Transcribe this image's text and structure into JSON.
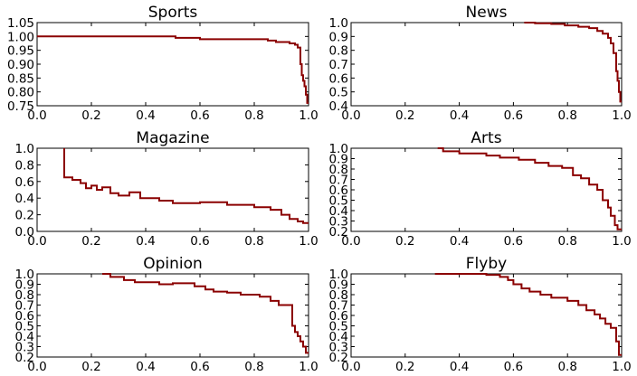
{
  "chart_data": [
    {
      "type": "line",
      "title": "Sports",
      "xlim": [
        0.0,
        1.0
      ],
      "ylim": [
        0.75,
        1.05
      ],
      "xticks": [
        "0.0",
        "0.2",
        "0.4",
        "0.6",
        "0.8",
        "1.0"
      ],
      "yticks": [
        "0.75",
        "0.80",
        "0.85",
        "0.90",
        "0.95",
        "1.00",
        "1.05"
      ],
      "line_color": "#8b0000",
      "x": [
        0.0,
        0.51,
        0.51,
        0.6,
        0.6,
        0.85,
        0.85,
        0.88,
        0.88,
        0.93,
        0.93,
        0.95,
        0.95,
        0.96,
        0.96,
        0.97,
        0.97,
        0.975,
        0.975,
        0.98,
        0.98,
        0.985,
        0.985,
        0.99,
        0.99,
        0.995,
        0.995,
        1.0
      ],
      "y": [
        1.0,
        1.0,
        0.995,
        0.995,
        0.99,
        0.99,
        0.985,
        0.985,
        0.98,
        0.98,
        0.975,
        0.975,
        0.97,
        0.97,
        0.96,
        0.96,
        0.9,
        0.9,
        0.86,
        0.86,
        0.84,
        0.84,
        0.82,
        0.82,
        0.79,
        0.79,
        0.76,
        0.76
      ]
    },
    {
      "type": "line",
      "title": "News",
      "xlim": [
        0.0,
        1.0
      ],
      "ylim": [
        0.4,
        1.0
      ],
      "xticks": [
        "0.0",
        "0.2",
        "0.4",
        "0.6",
        "0.8",
        "1.0"
      ],
      "yticks": [
        "0.4",
        "0.5",
        "0.6",
        "0.7",
        "0.8",
        "0.9",
        "1.0"
      ],
      "line_color": "#8b0000",
      "x": [
        0.64,
        0.68,
        0.68,
        0.74,
        0.74,
        0.79,
        0.79,
        0.84,
        0.84,
        0.88,
        0.88,
        0.91,
        0.91,
        0.93,
        0.93,
        0.95,
        0.95,
        0.96,
        0.96,
        0.97,
        0.97,
        0.98,
        0.98,
        0.985,
        0.985,
        0.99,
        0.99,
        0.995,
        0.995,
        1.0
      ],
      "y": [
        1.0,
        1.0,
        0.995,
        0.995,
        0.99,
        0.99,
        0.98,
        0.98,
        0.97,
        0.97,
        0.96,
        0.96,
        0.94,
        0.94,
        0.92,
        0.92,
        0.89,
        0.89,
        0.85,
        0.85,
        0.78,
        0.78,
        0.65,
        0.65,
        0.58,
        0.58,
        0.5,
        0.5,
        0.43,
        0.43
      ]
    },
    {
      "type": "line",
      "title": "Magazine",
      "xlim": [
        0.0,
        1.0
      ],
      "ylim": [
        0.0,
        1.0
      ],
      "xticks": [
        "0.0",
        "0.2",
        "0.4",
        "0.6",
        "0.8",
        "1.0"
      ],
      "yticks": [
        "0.0",
        "0.2",
        "0.4",
        "0.6",
        "0.8",
        "1.0"
      ],
      "line_color": "#8b0000",
      "x": [
        0.1,
        0.1,
        0.13,
        0.13,
        0.16,
        0.16,
        0.18,
        0.18,
        0.2,
        0.2,
        0.22,
        0.22,
        0.24,
        0.24,
        0.27,
        0.27,
        0.3,
        0.3,
        0.34,
        0.34,
        0.38,
        0.38,
        0.45,
        0.45,
        0.5,
        0.5,
        0.6,
        0.6,
        0.7,
        0.7,
        0.8,
        0.8,
        0.86,
        0.86,
        0.9,
        0.9,
        0.93,
        0.93,
        0.96,
        0.96,
        0.98,
        0.98,
        1.0
      ],
      "y": [
        1.0,
        0.65,
        0.65,
        0.62,
        0.62,
        0.58,
        0.58,
        0.52,
        0.52,
        0.55,
        0.55,
        0.5,
        0.5,
        0.53,
        0.53,
        0.46,
        0.46,
        0.43,
        0.43,
        0.47,
        0.47,
        0.4,
        0.4,
        0.37,
        0.37,
        0.34,
        0.34,
        0.35,
        0.35,
        0.32,
        0.32,
        0.29,
        0.29,
        0.26,
        0.26,
        0.2,
        0.2,
        0.15,
        0.15,
        0.12,
        0.12,
        0.1,
        0.1
      ]
    },
    {
      "type": "line",
      "title": "Arts",
      "xlim": [
        0.0,
        1.0
      ],
      "ylim": [
        0.2,
        1.0
      ],
      "xticks": [
        "0.0",
        "0.2",
        "0.4",
        "0.6",
        "0.8",
        "1.0"
      ],
      "yticks": [
        "0.2",
        "0.3",
        "0.4",
        "0.5",
        "0.6",
        "0.7",
        "0.8",
        "0.9",
        "1.0"
      ],
      "line_color": "#8b0000",
      "x": [
        0.32,
        0.34,
        0.34,
        0.4,
        0.4,
        0.5,
        0.5,
        0.55,
        0.55,
        0.62,
        0.62,
        0.68,
        0.68,
        0.73,
        0.73,
        0.78,
        0.78,
        0.82,
        0.82,
        0.85,
        0.85,
        0.88,
        0.88,
        0.91,
        0.91,
        0.93,
        0.93,
        0.95,
        0.95,
        0.96,
        0.96,
        0.975,
        0.975,
        0.985,
        0.985,
        1.0
      ],
      "y": [
        1.0,
        1.0,
        0.97,
        0.97,
        0.95,
        0.95,
        0.93,
        0.93,
        0.91,
        0.91,
        0.89,
        0.89,
        0.86,
        0.86,
        0.83,
        0.83,
        0.81,
        0.81,
        0.74,
        0.74,
        0.71,
        0.71,
        0.65,
        0.65,
        0.6,
        0.6,
        0.5,
        0.5,
        0.43,
        0.43,
        0.35,
        0.35,
        0.26,
        0.26,
        0.22,
        0.22
      ]
    },
    {
      "type": "line",
      "title": "Opinion",
      "xlim": [
        0.0,
        1.0
      ],
      "ylim": [
        0.2,
        1.0
      ],
      "xticks": [
        "0.0",
        "0.2",
        "0.4",
        "0.6",
        "0.8",
        "1.0"
      ],
      "yticks": [
        "0.2",
        "0.3",
        "0.4",
        "0.5",
        "0.6",
        "0.7",
        "0.8",
        "0.9",
        "1.0"
      ],
      "line_color": "#8b0000",
      "x": [
        0.24,
        0.27,
        0.27,
        0.32,
        0.32,
        0.36,
        0.36,
        0.45,
        0.45,
        0.5,
        0.5,
        0.58,
        0.58,
        0.62,
        0.62,
        0.65,
        0.65,
        0.7,
        0.7,
        0.75,
        0.75,
        0.82,
        0.82,
        0.86,
        0.86,
        0.89,
        0.89,
        0.94,
        0.94,
        0.95,
        0.95,
        0.96,
        0.96,
        0.97,
        0.97,
        0.98,
        0.98,
        0.99,
        0.99,
        1.0
      ],
      "y": [
        1.0,
        1.0,
        0.97,
        0.97,
        0.94,
        0.94,
        0.92,
        0.92,
        0.9,
        0.9,
        0.91,
        0.91,
        0.88,
        0.88,
        0.85,
        0.85,
        0.83,
        0.83,
        0.82,
        0.82,
        0.8,
        0.8,
        0.78,
        0.78,
        0.74,
        0.74,
        0.7,
        0.7,
        0.5,
        0.5,
        0.44,
        0.44,
        0.4,
        0.4,
        0.35,
        0.35,
        0.3,
        0.3,
        0.24,
        0.24
      ]
    },
    {
      "type": "line",
      "title": "Flyby",
      "xlim": [
        0.0,
        1.0
      ],
      "ylim": [
        0.2,
        1.0
      ],
      "xticks": [
        "0.0",
        "0.2",
        "0.4",
        "0.6",
        "0.8",
        "1.0"
      ],
      "yticks": [
        "0.2",
        "0.3",
        "0.4",
        "0.5",
        "0.6",
        "0.7",
        "0.8",
        "0.9",
        "1.0"
      ],
      "line_color": "#8b0000",
      "x": [
        0.31,
        0.5,
        0.5,
        0.55,
        0.55,
        0.58,
        0.58,
        0.6,
        0.6,
        0.63,
        0.63,
        0.66,
        0.66,
        0.7,
        0.7,
        0.74,
        0.74,
        0.8,
        0.8,
        0.84,
        0.84,
        0.87,
        0.87,
        0.9,
        0.9,
        0.92,
        0.92,
        0.94,
        0.94,
        0.96,
        0.96,
        0.98,
        0.98,
        0.99,
        0.99,
        1.0
      ],
      "y": [
        1.0,
        1.0,
        0.99,
        0.99,
        0.97,
        0.97,
        0.94,
        0.94,
        0.9,
        0.9,
        0.86,
        0.86,
        0.83,
        0.83,
        0.8,
        0.8,
        0.77,
        0.77,
        0.74,
        0.74,
        0.7,
        0.7,
        0.65,
        0.65,
        0.61,
        0.61,
        0.57,
        0.57,
        0.52,
        0.52,
        0.48,
        0.48,
        0.35,
        0.35,
        0.22,
        0.22
      ]
    }
  ]
}
